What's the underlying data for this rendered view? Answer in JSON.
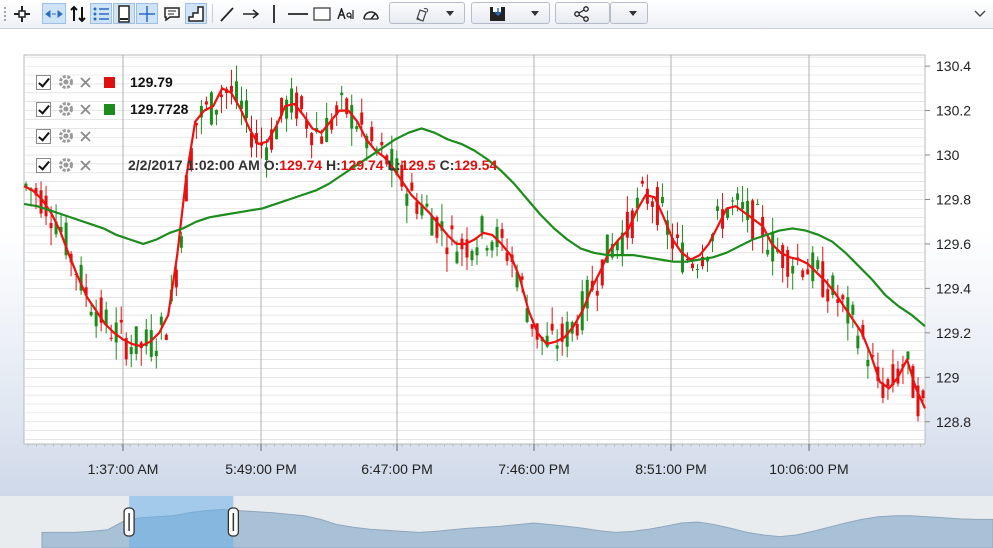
{
  "toolbar": {
    "tools": [
      "crosshair-icon",
      "zoom-drag-icon",
      "scroll-icon",
      "list-icon",
      "portrait-icon",
      "plus-cursor-icon",
      "comment-icon",
      "chart-area-icon",
      "trend-line-icon",
      "arrow-line-icon",
      "vertical-line-icon",
      "horizontal-line-icon",
      "rectangle-icon",
      "text-tool-icon",
      "speedometer-icon"
    ],
    "active_tools": [
      "zoom-drag-icon",
      "list-icon",
      "portrait-icon",
      "plus-cursor-icon",
      "chart-area-icon"
    ],
    "dropdowns": [
      "magnet-pencil-icon",
      "save-icon",
      "share-icon",
      "more-icon"
    ]
  },
  "legend": {
    "rows": [
      {
        "color": "#e01010",
        "value": "129.79"
      },
      {
        "color": "#1c8c1c",
        "value": "129.7728"
      },
      {},
      {
        "ohlc": {
          "datetime": "2/2/2017 1:02:00 AM",
          "o_label": "O:",
          "o": "129.74",
          "h_label": "H:",
          "h": "129.74",
          "l_label": "L:",
          "l": "129.5",
          "c_label": "C:",
          "c": "129.54"
        }
      }
    ]
  },
  "colors": {
    "up": "#1c8c1c",
    "down": "#e01010",
    "fast_ma": "#ee1111",
    "slow_ma": "#1c8c1c",
    "grid": "#d8d8d8"
  },
  "chart_data": {
    "type": "line",
    "y_range": [
      128.7,
      130.45
    ],
    "y_ticks": [
      "130.4",
      "130.2",
      "130",
      "129.8",
      "129.6",
      "129.4",
      "129.2",
      "129",
      "128.8"
    ],
    "x_ticks": [
      "1:37:00 AM",
      "5:49:00 PM",
      "6:47:00 PM",
      "7:46:00 PM",
      "8:51:00 PM",
      "10:06:00 PM"
    ],
    "x_points": 101,
    "series": [
      {
        "kind": "fast",
        "values": [
          129.86,
          129.84,
          129.8,
          129.74,
          129.66,
          129.55,
          129.45,
          129.36,
          129.3,
          129.24,
          129.2,
          129.17,
          129.15,
          129.14,
          129.16,
          129.2,
          129.28,
          129.55,
          129.9,
          130.15,
          130.2,
          130.22,
          130.3,
          130.28,
          130.21,
          130.12,
          130.05,
          130.06,
          130.13,
          130.22,
          130.23,
          130.18,
          130.12,
          130.1,
          130.15,
          130.2,
          130.2,
          130.15,
          130.07,
          130.02,
          129.99,
          129.94,
          129.88,
          129.82,
          129.78,
          129.74,
          129.69,
          129.64,
          129.6,
          129.6,
          129.62,
          129.65,
          129.64,
          129.6,
          129.55,
          129.45,
          129.3,
          129.2,
          129.15,
          129.16,
          129.18,
          129.23,
          129.3,
          129.4,
          129.48,
          129.57,
          129.62,
          129.66,
          129.75,
          129.82,
          129.81,
          129.72,
          129.62,
          129.56,
          129.53,
          129.55,
          129.6,
          129.68,
          129.76,
          129.77,
          129.74,
          129.71,
          129.68,
          129.6,
          129.56,
          129.54,
          129.53,
          129.51,
          129.47,
          129.43,
          129.38,
          129.32,
          129.26,
          129.2,
          129.1,
          128.98,
          128.95,
          129.0,
          129.08,
          128.95,
          128.86
        ],
        "color": "#ee1111"
      },
      {
        "kind": "slow",
        "values": [
          129.78,
          129.77,
          129.75,
          129.73,
          129.71,
          129.69,
          129.67,
          129.64,
          129.62,
          129.6,
          129.62,
          129.65,
          129.67,
          129.7,
          129.72,
          129.73,
          129.74,
          129.75,
          129.76,
          129.78,
          129.8,
          129.82,
          129.84,
          129.87,
          129.91,
          129.95,
          129.99,
          130.03,
          130.07,
          130.1,
          130.12,
          130.1,
          130.07,
          130.05,
          130.02,
          129.98,
          129.93,
          129.87,
          129.8,
          129.73,
          129.67,
          129.62,
          129.58,
          129.56,
          129.55,
          129.55,
          129.55,
          129.54,
          129.53,
          129.52,
          129.52,
          129.53,
          129.54,
          129.56,
          129.59,
          129.62,
          129.64,
          129.66,
          129.67,
          129.66,
          129.64,
          129.61,
          129.56,
          129.5,
          129.44,
          129.37,
          129.32,
          129.28,
          129.23
        ],
        "color": "#1c8c1c"
      }
    ]
  },
  "navigator": {
    "handles": [
      "left-handle",
      "right-handle"
    ],
    "selection": [
      0.13,
      0.235
    ],
    "profile": [
      0.3,
      0.3,
      0.3,
      0.32,
      0.35,
      0.52,
      0.58,
      0.6,
      0.62,
      0.68,
      0.72,
      0.74,
      0.72,
      0.7,
      0.68,
      0.65,
      0.62,
      0.55,
      0.45,
      0.4,
      0.36,
      0.34,
      0.32,
      0.3,
      0.32,
      0.35,
      0.38,
      0.4,
      0.42,
      0.45,
      0.48,
      0.45,
      0.42,
      0.38,
      0.33,
      0.3,
      0.32,
      0.36,
      0.42,
      0.48,
      0.5,
      0.45,
      0.38,
      0.3,
      0.25,
      0.22,
      0.25,
      0.32,
      0.4,
      0.48,
      0.55,
      0.6,
      0.62,
      0.62,
      0.6,
      0.58,
      0.56,
      0.55,
      0.55
    ]
  }
}
